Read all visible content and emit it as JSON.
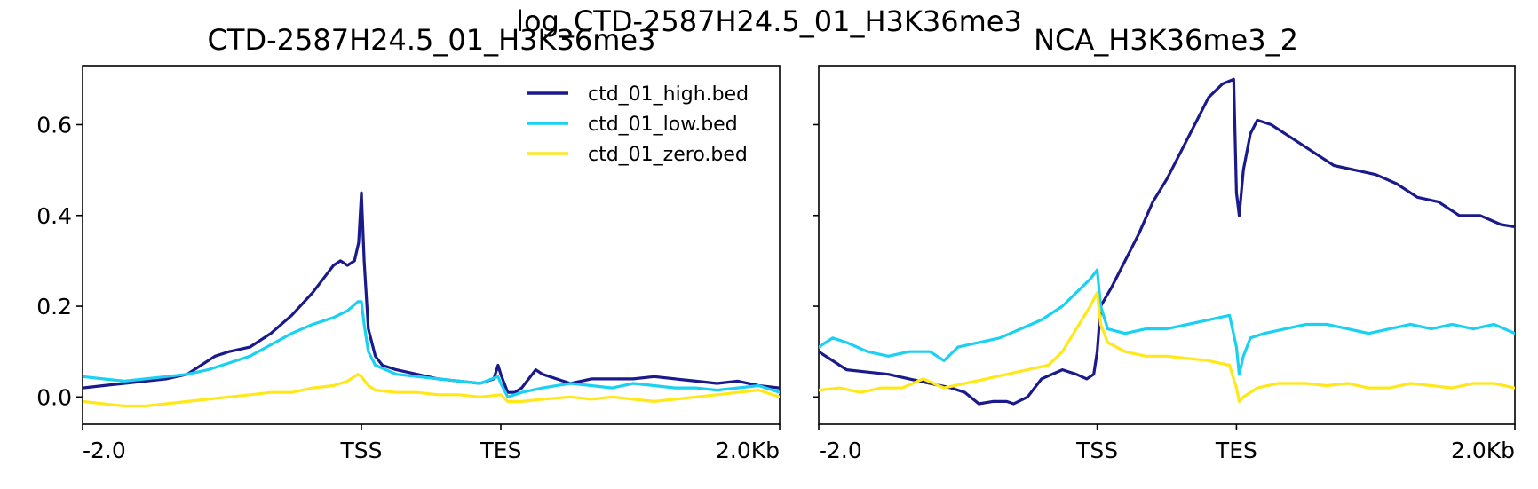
{
  "figure": {
    "suptitle": "log_CTD-2587H24.5_01_H3K36me3"
  },
  "chart_data": [
    {
      "type": "line",
      "title": "CTD-2587H24.5_01_H3K36me3",
      "xlabel": "",
      "ylabel": "",
      "xlim": [
        0,
        100
      ],
      "ylim": [
        -0.06,
        0.73
      ],
      "yticks": [
        0.0,
        0.2,
        0.4,
        0.6
      ],
      "ytick_labels": [
        "0.0",
        "0.2",
        "0.4",
        "0.6"
      ],
      "xticks": [
        0,
        40,
        60,
        100
      ],
      "xtick_labels": [
        "-2.0",
        "TSS",
        "TES",
        "2.0Kb"
      ],
      "legend": {
        "placement": "top-right",
        "entries": [
          "ctd_01_high.bed",
          "ctd_01_low.bed",
          "ctd_01_zero.bed"
        ]
      },
      "series": [
        {
          "name": "ctd_01_high.bed",
          "color": "#1a1a8c",
          "points": [
            [
              0,
              0.02
            ],
            [
              3,
              0.025
            ],
            [
              6,
              0.03
            ],
            [
              9,
              0.035
            ],
            [
              12,
              0.04
            ],
            [
              15,
              0.05
            ],
            [
              17,
              0.07
            ],
            [
              19,
              0.09
            ],
            [
              21,
              0.1
            ],
            [
              24,
              0.11
            ],
            [
              27,
              0.14
            ],
            [
              30,
              0.18
            ],
            [
              33,
              0.23
            ],
            [
              35,
              0.27
            ],
            [
              36,
              0.29
            ],
            [
              37,
              0.3
            ],
            [
              38,
              0.29
            ],
            [
              39,
              0.3
            ],
            [
              39.6,
              0.34
            ],
            [
              40,
              0.45
            ],
            [
              40.4,
              0.3
            ],
            [
              41,
              0.15
            ],
            [
              42,
              0.09
            ],
            [
              43,
              0.07
            ],
            [
              45,
              0.06
            ],
            [
              48,
              0.05
            ],
            [
              51,
              0.04
            ],
            [
              54,
              0.035
            ],
            [
              57,
              0.03
            ],
            [
              59,
              0.04
            ],
            [
              59.6,
              0.07
            ],
            [
              60,
              0.05
            ],
            [
              61,
              0.01
            ],
            [
              62,
              0.01
            ],
            [
              63,
              0.02
            ],
            [
              64,
              0.04
            ],
            [
              65,
              0.06
            ],
            [
              66,
              0.05
            ],
            [
              68,
              0.04
            ],
            [
              70,
              0.03
            ],
            [
              73,
              0.04
            ],
            [
              76,
              0.04
            ],
            [
              79,
              0.04
            ],
            [
              82,
              0.045
            ],
            [
              85,
              0.04
            ],
            [
              88,
              0.035
            ],
            [
              91,
              0.03
            ],
            [
              94,
              0.035
            ],
            [
              97,
              0.025
            ],
            [
              100,
              0.02
            ]
          ]
        },
        {
          "name": "ctd_01_low.bed",
          "color": "#1ad1f2",
          "points": [
            [
              0,
              0.045
            ],
            [
              3,
              0.04
            ],
            [
              6,
              0.035
            ],
            [
              9,
              0.04
            ],
            [
              12,
              0.045
            ],
            [
              15,
              0.05
            ],
            [
              18,
              0.06
            ],
            [
              21,
              0.075
            ],
            [
              24,
              0.09
            ],
            [
              27,
              0.115
            ],
            [
              30,
              0.14
            ],
            [
              33,
              0.16
            ],
            [
              36,
              0.175
            ],
            [
              38,
              0.19
            ],
            [
              39.5,
              0.21
            ],
            [
              40,
              0.21
            ],
            [
              40.4,
              0.16
            ],
            [
              41,
              0.1
            ],
            [
              42,
              0.07
            ],
            [
              45,
              0.05
            ],
            [
              48,
              0.045
            ],
            [
              51,
              0.04
            ],
            [
              54,
              0.035
            ],
            [
              57,
              0.03
            ],
            [
              59.6,
              0.045
            ],
            [
              60,
              0.03
            ],
            [
              61,
              0.0
            ],
            [
              63,
              0.01
            ],
            [
              66,
              0.02
            ],
            [
              70,
              0.03
            ],
            [
              73,
              0.025
            ],
            [
              76,
              0.02
            ],
            [
              79,
              0.03
            ],
            [
              82,
              0.025
            ],
            [
              85,
              0.02
            ],
            [
              88,
              0.02
            ],
            [
              91,
              0.015
            ],
            [
              94,
              0.02
            ],
            [
              97,
              0.025
            ],
            [
              100,
              0.01
            ]
          ]
        },
        {
          "name": "ctd_01_zero.bed",
          "color": "#ffe81a",
          "points": [
            [
              0,
              -0.01
            ],
            [
              3,
              -0.015
            ],
            [
              6,
              -0.02
            ],
            [
              9,
              -0.02
            ],
            [
              12,
              -0.015
            ],
            [
              15,
              -0.01
            ],
            [
              18,
              -0.005
            ],
            [
              21,
              0.0
            ],
            [
              24,
              0.005
            ],
            [
              27,
              0.01
            ],
            [
              30,
              0.01
            ],
            [
              33,
              0.02
            ],
            [
              36,
              0.025
            ],
            [
              38,
              0.035
            ],
            [
              39.5,
              0.05
            ],
            [
              40,
              0.045
            ],
            [
              41,
              0.025
            ],
            [
              42,
              0.015
            ],
            [
              45,
              0.01
            ],
            [
              48,
              0.01
            ],
            [
              51,
              0.005
            ],
            [
              54,
              0.005
            ],
            [
              57,
              0.0
            ],
            [
              60,
              0.005
            ],
            [
              61,
              -0.01
            ],
            [
              63,
              -0.01
            ],
            [
              66,
              -0.005
            ],
            [
              70,
              0.0
            ],
            [
              73,
              -0.005
            ],
            [
              76,
              0.0
            ],
            [
              79,
              -0.005
            ],
            [
              82,
              -0.01
            ],
            [
              85,
              -0.005
            ],
            [
              88,
              0.0
            ],
            [
              91,
              0.005
            ],
            [
              94,
              0.01
            ],
            [
              97,
              0.015
            ],
            [
              100,
              0.0
            ]
          ]
        }
      ]
    },
    {
      "type": "line",
      "title": "NCA_H3K36me3_2",
      "xlabel": "",
      "ylabel": "",
      "xlim": [
        0,
        100
      ],
      "ylim": [
        -0.06,
        0.73
      ],
      "yticks": [
        0.0,
        0.2,
        0.4,
        0.6
      ],
      "ytick_labels": [
        "",
        "",
        "",
        ""
      ],
      "xticks": [
        0,
        40,
        60,
        100
      ],
      "xtick_labels": [
        "-2.0",
        "TSS",
        "TES",
        "2.0Kb"
      ],
      "series": [
        {
          "name": "ctd_01_high.bed",
          "color": "#1a1a8c",
          "points": [
            [
              0,
              0.1
            ],
            [
              2,
              0.08
            ],
            [
              4,
              0.06
            ],
            [
              7,
              0.055
            ],
            [
              10,
              0.05
            ],
            [
              13,
              0.04
            ],
            [
              16,
              0.03
            ],
            [
              19,
              0.02
            ],
            [
              21,
              0.01
            ],
            [
              23,
              -0.015
            ],
            [
              25,
              -0.01
            ],
            [
              27,
              -0.01
            ],
            [
              28,
              -0.015
            ],
            [
              30,
              0.0
            ],
            [
              32,
              0.04
            ],
            [
              35,
              0.06
            ],
            [
              37,
              0.05
            ],
            [
              38.5,
              0.04
            ],
            [
              39.5,
              0.05
            ],
            [
              40,
              0.1
            ],
            [
              40.5,
              0.2
            ],
            [
              42,
              0.24
            ],
            [
              44,
              0.3
            ],
            [
              46,
              0.36
            ],
            [
              48,
              0.43
            ],
            [
              50,
              0.48
            ],
            [
              52,
              0.54
            ],
            [
              54,
              0.6
            ],
            [
              56,
              0.66
            ],
            [
              58,
              0.69
            ],
            [
              59.6,
              0.7
            ],
            [
              60,
              0.45
            ],
            [
              60.4,
              0.4
            ],
            [
              61,
              0.5
            ],
            [
              62,
              0.58
            ],
            [
              63,
              0.61
            ],
            [
              65,
              0.6
            ],
            [
              68,
              0.57
            ],
            [
              71,
              0.54
            ],
            [
              74,
              0.51
            ],
            [
              77,
              0.5
            ],
            [
              80,
              0.49
            ],
            [
              83,
              0.47
            ],
            [
              86,
              0.44
            ],
            [
              89,
              0.43
            ],
            [
              92,
              0.4
            ],
            [
              95,
              0.4
            ],
            [
              98,
              0.38
            ],
            [
              100,
              0.375
            ]
          ]
        },
        {
          "name": "ctd_01_low.bed",
          "color": "#1ad1f2",
          "points": [
            [
              0,
              0.11
            ],
            [
              2,
              0.13
            ],
            [
              4,
              0.12
            ],
            [
              7,
              0.1
            ],
            [
              10,
              0.09
            ],
            [
              13,
              0.1
            ],
            [
              16,
              0.1
            ],
            [
              18,
              0.08
            ],
            [
              20,
              0.11
            ],
            [
              23,
              0.12
            ],
            [
              26,
              0.13
            ],
            [
              29,
              0.15
            ],
            [
              32,
              0.17
            ],
            [
              35,
              0.2
            ],
            [
              37,
              0.23
            ],
            [
              39,
              0.26
            ],
            [
              40,
              0.28
            ],
            [
              40.5,
              0.2
            ],
            [
              41.5,
              0.15
            ],
            [
              44,
              0.14
            ],
            [
              47,
              0.15
            ],
            [
              50,
              0.15
            ],
            [
              53,
              0.16
            ],
            [
              56,
              0.17
            ],
            [
              59,
              0.18
            ],
            [
              60,
              0.11
            ],
            [
              60.4,
              0.05
            ],
            [
              61,
              0.09
            ],
            [
              62,
              0.13
            ],
            [
              64,
              0.14
            ],
            [
              67,
              0.15
            ],
            [
              70,
              0.16
            ],
            [
              73,
              0.16
            ],
            [
              76,
              0.15
            ],
            [
              79,
              0.14
            ],
            [
              82,
              0.15
            ],
            [
              85,
              0.16
            ],
            [
              88,
              0.15
            ],
            [
              91,
              0.16
            ],
            [
              94,
              0.15
            ],
            [
              97,
              0.16
            ],
            [
              100,
              0.14
            ]
          ]
        },
        {
          "name": "ctd_01_zero.bed",
          "color": "#ffe81a",
          "points": [
            [
              0,
              0.015
            ],
            [
              3,
              0.02
            ],
            [
              6,
              0.01
            ],
            [
              9,
              0.02
            ],
            [
              12,
              0.02
            ],
            [
              15,
              0.04
            ],
            [
              18,
              0.02
            ],
            [
              21,
              0.03
            ],
            [
              24,
              0.04
            ],
            [
              27,
              0.05
            ],
            [
              30,
              0.06
            ],
            [
              33,
              0.07
            ],
            [
              35,
              0.1
            ],
            [
              37,
              0.15
            ],
            [
              39,
              0.2
            ],
            [
              40,
              0.23
            ],
            [
              40.5,
              0.16
            ],
            [
              41.5,
              0.12
            ],
            [
              44,
              0.1
            ],
            [
              47,
              0.09
            ],
            [
              50,
              0.09
            ],
            [
              53,
              0.085
            ],
            [
              56,
              0.08
            ],
            [
              59,
              0.07
            ],
            [
              60,
              0.02
            ],
            [
              60.4,
              -0.01
            ],
            [
              61,
              0.0
            ],
            [
              63,
              0.02
            ],
            [
              66,
              0.03
            ],
            [
              70,
              0.03
            ],
            [
              73,
              0.025
            ],
            [
              76,
              0.03
            ],
            [
              79,
              0.02
            ],
            [
              82,
              0.02
            ],
            [
              85,
              0.03
            ],
            [
              88,
              0.025
            ],
            [
              91,
              0.02
            ],
            [
              94,
              0.03
            ],
            [
              97,
              0.03
            ],
            [
              100,
              0.02
            ]
          ]
        }
      ]
    }
  ]
}
